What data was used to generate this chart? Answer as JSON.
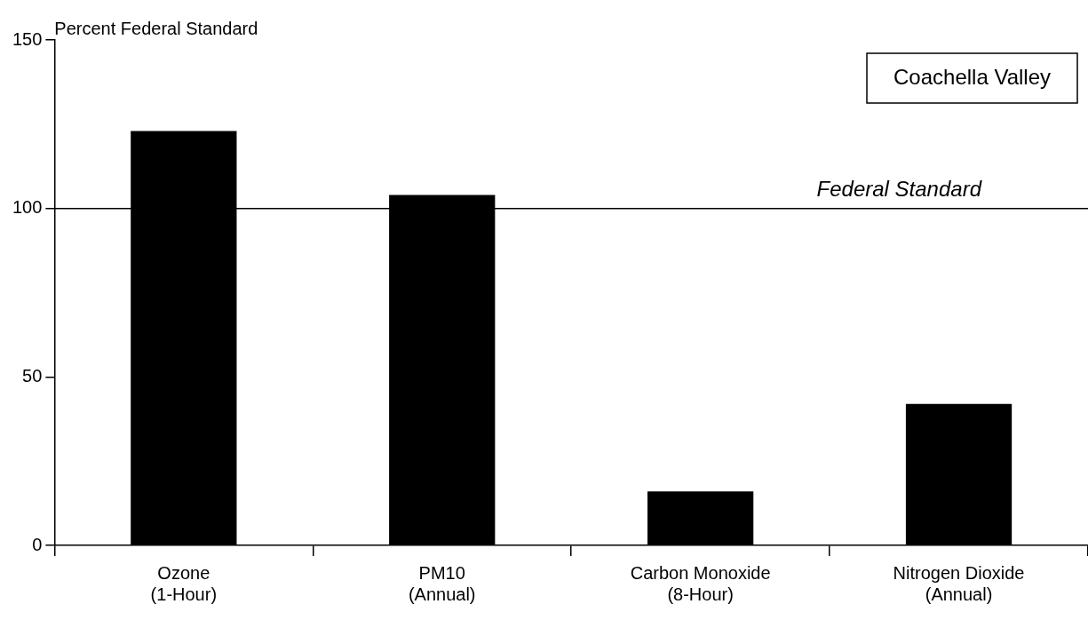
{
  "chart_data": {
    "type": "bar",
    "title": "Coachella Valley",
    "ylabel": "Percent Federal Standard",
    "categories": [
      "Ozone\n(1-Hour)",
      "PM10\n(Annual)",
      "Carbon Monoxide\n(8-Hour)",
      "Nitrogen Dioxide\n(Annual)"
    ],
    "values": [
      123,
      104,
      16,
      42
    ],
    "color": "#000000",
    "ylim": [
      0,
      150
    ],
    "yticks": [
      0,
      50,
      100,
      150
    ],
    "ref_lines": [
      {
        "axis": "y",
        "value": 100,
        "label": "Federal Standard",
        "color": "#000000"
      }
    ]
  }
}
